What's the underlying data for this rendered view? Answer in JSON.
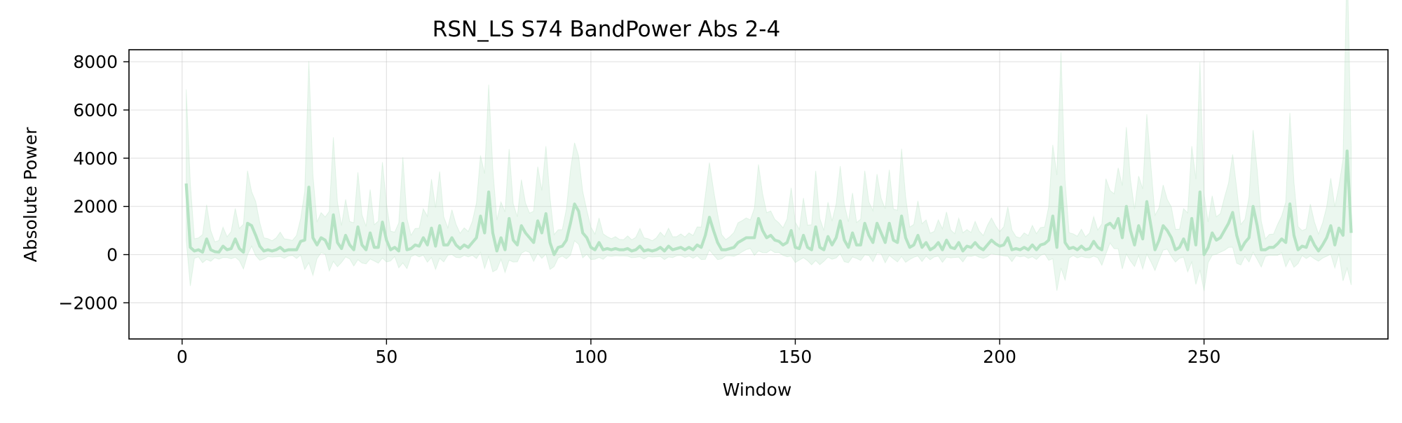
{
  "chart_data": {
    "type": "line",
    "title": "RSN_LS S74 BandPower Abs 2-4",
    "xlabel": "Window",
    "ylabel": "Absolute Power",
    "xlim": [
      -13,
      295
    ],
    "ylim": [
      -3500,
      8500
    ],
    "xticks": [
      0,
      50,
      100,
      150,
      200,
      250
    ],
    "xtick_labels": [
      "0",
      "50",
      "100",
      "150",
      "200",
      "250"
    ],
    "yticks": [
      -2000,
      0,
      2000,
      4000,
      6000,
      8000
    ],
    "ytick_labels": [
      "−2000",
      "0",
      "2000",
      "4000",
      "6000",
      "8000"
    ],
    "grid": true,
    "colors": {
      "line": "#b6e3c4",
      "band": "#b6e3c4"
    },
    "x_start": 1,
    "mean": [
      2950,
      300,
      150,
      200,
      100,
      650,
      200,
      120,
      100,
      350,
      200,
      250,
      650,
      250,
      100,
      1300,
      1200,
      800,
      350,
      150,
      200,
      150,
      200,
      300,
      150,
      200,
      200,
      200,
      550,
      600,
      2800,
      700,
      400,
      700,
      600,
      250,
      1650,
      500,
      250,
      800,
      400,
      200,
      1150,
      400,
      200,
      900,
      300,
      300,
      1350,
      600,
      200,
      300,
      150,
      1300,
      200,
      250,
      400,
      350,
      700,
      400,
      1100,
      350,
      1200,
      400,
      400,
      700,
      400,
      250,
      400,
      300,
      500,
      700,
      1600,
      900,
      2600,
      900,
      150,
      700,
      200,
      1500,
      600,
      400,
      1200,
      900,
      700,
      500,
      1400,
      900,
      1700,
      500,
      0,
      300,
      350,
      600,
      1300,
      2100,
      1800,
      900,
      700,
      300,
      200,
      500,
      200,
      250,
      200,
      250,
      200,
      200,
      250,
      150,
      200,
      350,
      150,
      200,
      150,
      200,
      300,
      150,
      350,
      200,
      250,
      300,
      200,
      300,
      200,
      400,
      300,
      800,
      1550,
      1000,
      500,
      200,
      200,
      250,
      300,
      500,
      600,
      700,
      700,
      700,
      1500,
      1000,
      700,
      800,
      600,
      550,
      400,
      500,
      1000,
      300,
      250,
      800,
      300,
      200,
      1150,
      300,
      200,
      750,
      400,
      700,
      1400,
      600,
      300,
      900,
      400,
      400,
      1300,
      800,
      500,
      1300,
      900,
      500,
      1300,
      600,
      500,
      1600,
      700,
      300,
      400,
      800,
      300,
      500,
      200,
      300,
      500,
      200,
      600,
      300,
      250,
      500,
      150,
      350,
      300,
      500,
      300,
      200,
      400,
      600,
      450,
      350,
      400,
      700,
      200,
      250,
      200,
      300,
      200,
      400,
      200,
      400,
      450,
      600,
      1600,
      300,
      2800,
      500,
      250,
      300,
      200,
      350,
      200,
      250,
      550,
      300,
      200,
      1200,
      1300,
      1100,
      1500,
      700,
      2000,
      1000,
      400,
      1200,
      650,
      2200,
      1200,
      200,
      600,
      1200,
      1000,
      700,
      200,
      300,
      650,
      200,
      1500,
      400,
      2600,
      0,
      300,
      900,
      600,
      700,
      1000,
      1300,
      1750,
      800,
      200,
      500,
      700,
      2000,
      1200,
      200,
      200,
      300,
      300,
      450,
      650,
      500,
      2100,
      800,
      200,
      350,
      300,
      750,
      400,
      150,
      400,
      700,
      1200,
      400,
      1100,
      800,
      4300,
      900
    ]
  }
}
